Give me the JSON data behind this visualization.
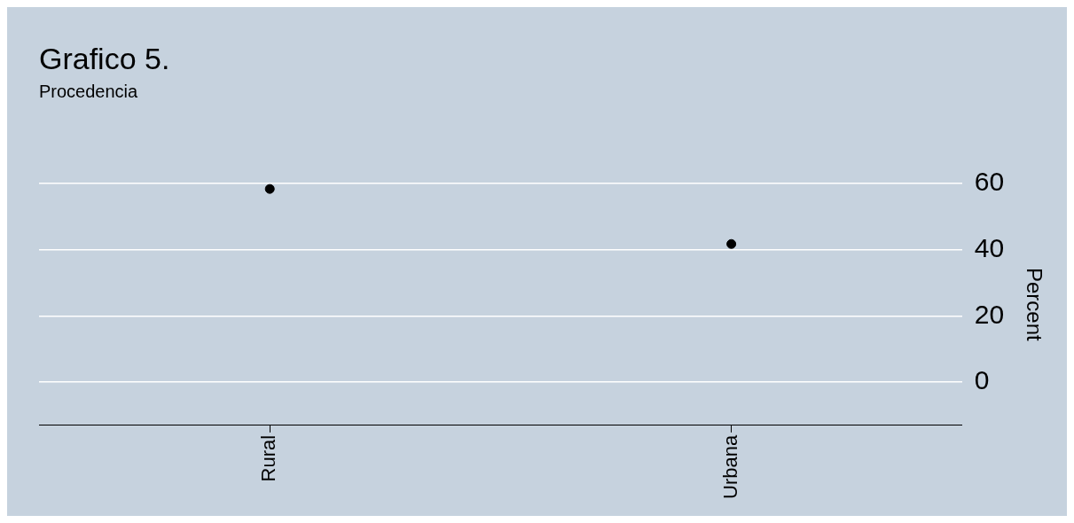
{
  "chart_data": {
    "type": "scatter",
    "title": "Grafico 5.",
    "subtitle": "Procedencia",
    "ylabel": "Percent",
    "categories": [
      "Rural",
      "Urbana"
    ],
    "series": [
      {
        "color": "#000000",
        "values": [
          58.3,
          41.7
        ]
      }
    ],
    "ylim": [
      -13,
      60
    ],
    "yticks": [
      0,
      20,
      40,
      60
    ],
    "grid": "y",
    "legend": false,
    "marker": "circle"
  }
}
